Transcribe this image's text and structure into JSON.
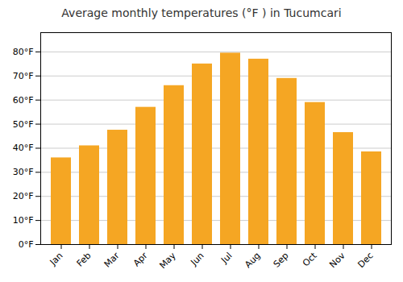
{
  "chart_data": {
    "type": "bar",
    "title": "Average monthly temperatures (°F ) in Tucumcari",
    "categories": [
      "Jan",
      "Feb",
      "Mar",
      "Apr",
      "May",
      "Jun",
      "Jul",
      "Aug",
      "Sep",
      "Oct",
      "Nov",
      "Dec"
    ],
    "values": [
      36,
      41,
      47.5,
      57,
      66,
      75,
      79.5,
      77,
      69,
      59,
      46.5,
      38.5
    ],
    "color": "#F5A623",
    "ylim": [
      0,
      88
    ],
    "yticks": [
      {
        "value": 0,
        "label": "0°F"
      },
      {
        "value": 10,
        "label": "10°F"
      },
      {
        "value": 20,
        "label": "20°F"
      },
      {
        "value": 30,
        "label": "30°F"
      },
      {
        "value": 40,
        "label": "40°F"
      },
      {
        "value": 50,
        "label": "50°F"
      },
      {
        "value": 60,
        "label": "60°F"
      },
      {
        "value": 70,
        "label": "70°F"
      },
      {
        "value": 80,
        "label": "80°F"
      }
    ],
    "grid": true
  }
}
